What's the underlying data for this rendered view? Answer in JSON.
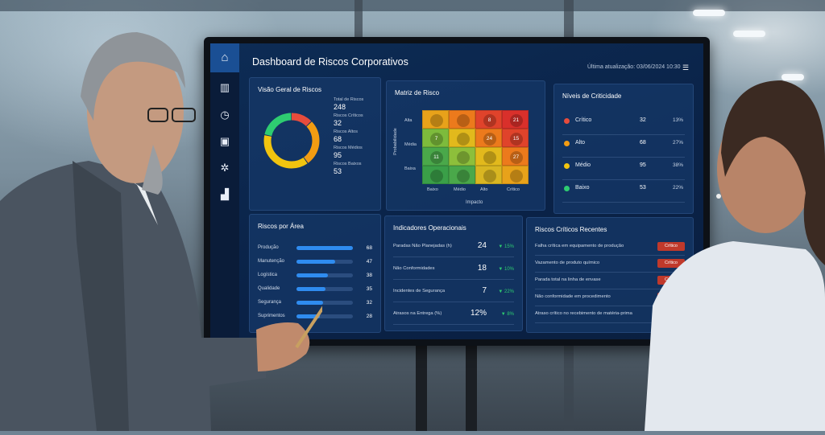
{
  "dashboard": {
    "title": "Dashboard de Riscos Corporativos",
    "last_update": "Última atualização: 03/06/2024 10:30",
    "rail_icons": [
      "home-icon",
      "building-icon",
      "clock-icon",
      "clipboard-icon",
      "settings-icon",
      "chart-icon"
    ]
  },
  "overview": {
    "title": "Visão Geral de Riscos",
    "stats": [
      {
        "label": "Total de Riscos",
        "value": "248"
      },
      {
        "label": "Riscos Críticos",
        "value": "32"
      },
      {
        "label": "Riscos Altos",
        "value": "68"
      },
      {
        "label": "Riscos Médios",
        "value": "95"
      },
      {
        "label": "Riscos Baixos",
        "value": "53"
      }
    ],
    "donut": [
      {
        "name": "Crítico",
        "value": 32,
        "color": "#e74c3c"
      },
      {
        "name": "Alto",
        "value": 68,
        "color": "#f39c12"
      },
      {
        "name": "Médio",
        "value": 95,
        "color": "#f1c40f"
      },
      {
        "name": "Baixo",
        "value": 53,
        "color": "#2ecc71"
      }
    ]
  },
  "matrix": {
    "title": "Matriz de Risco",
    "y_label": "Probabilidade",
    "x_label": "Impacto",
    "y_ticks": [
      "Alta",
      "Média",
      "Baixa"
    ],
    "x_ticks": [
      "Baixo",
      "Médio",
      "Alto",
      "Crítico"
    ],
    "cells": [
      [
        "",
        "",
        "8",
        "21"
      ],
      [
        "7",
        "",
        "24",
        "15"
      ],
      [
        "11",
        "",
        "",
        "27"
      ],
      [
        "",
        "",
        "",
        ""
      ]
    ],
    "colors": [
      [
        "#e8a21a",
        "#ec7a1c",
        "#e0432b",
        "#d9302b"
      ],
      [
        "#7dbb3c",
        "#e2b91c",
        "#ec7a1c",
        "#e0432b"
      ],
      [
        "#4aa84a",
        "#8dbf3b",
        "#e2b91c",
        "#ec7a1c"
      ],
      [
        "#3a9f48",
        "#4aa84a",
        "#d9b622",
        "#e8a21a"
      ]
    ]
  },
  "levels": {
    "title": "Níveis de Criticidade",
    "rows": [
      {
        "label": "Crítico",
        "count": "32",
        "pct": "13%",
        "color": "#e74c3c"
      },
      {
        "label": "Alto",
        "count": "68",
        "pct": "27%",
        "color": "#f39c12"
      },
      {
        "label": "Médio",
        "count": "95",
        "pct": "38%",
        "color": "#f1c40f"
      },
      {
        "label": "Baixo",
        "count": "53",
        "pct": "22%",
        "color": "#2ecc71"
      }
    ]
  },
  "areas": {
    "title": "Riscos por Área",
    "rows": [
      {
        "label": "Produção",
        "value": "68",
        "frac": 1.0
      },
      {
        "label": "Manutenção",
        "value": "47",
        "frac": 0.69
      },
      {
        "label": "Logística",
        "value": "38",
        "frac": 0.56
      },
      {
        "label": "Qualidade",
        "value": "35",
        "frac": 0.51
      },
      {
        "label": "Segurança",
        "value": "32",
        "frac": 0.47
      },
      {
        "label": "Suprimentos",
        "value": "28",
        "frac": 0.41
      }
    ]
  },
  "indicators": {
    "title": "Indicadores Operacionais",
    "rows": [
      {
        "label": "Paradas Não Planejadas (h)",
        "value": "24",
        "delta": "▼ 15%"
      },
      {
        "label": "Não Conformidades",
        "value": "18",
        "delta": "▼ 10%"
      },
      {
        "label": "Incidentes de Segurança",
        "value": "7",
        "delta": "▼ 22%"
      },
      {
        "label": "Atrasos na Entrega (%)",
        "value": "12%",
        "delta": "▼ 8%"
      }
    ]
  },
  "recent": {
    "title": "Riscos Críticos Recentes",
    "badge": "Crítico",
    "rows": [
      "Falha crítica em equipamento de produção",
      "Vazamento de produto químico",
      "Parada total na linha de envase",
      "Não conformidade em procedimento",
      "Atraso crítico no recebimento de matéria-prima"
    ]
  }
}
